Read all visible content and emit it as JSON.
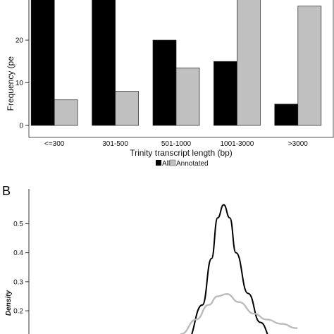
{
  "chart_data": [
    {
      "type": "bar",
      "title": "",
      "xlabel": "Trinity transcript length (bp)",
      "ylabel": "Frequency (pe",
      "categories": [
        "<=300",
        "301-500",
        "501-1000",
        "1001-3000",
        ">3000"
      ],
      "series": [
        {
          "name": "All",
          "values": [
            34,
            33,
            20,
            15,
            5
          ],
          "color": "#000000"
        },
        {
          "name": "Annotated",
          "values": [
            6,
            8,
            13.5,
            30,
            28
          ],
          "color": "#c0c0c0"
        }
      ],
      "ylim": [
        0,
        30
      ],
      "yticks": [
        0,
        10,
        20
      ],
      "legend": "bottom",
      "grid": false
    },
    {
      "type": "line",
      "panel_label": "B",
      "ylabel": "Density",
      "yticks": [
        "0.2",
        "0.3",
        "0.4",
        "0.5"
      ],
      "ylim": [
        0.12,
        0.62
      ],
      "xlim": [
        0,
        10
      ],
      "series": [
        {
          "color": "#000000",
          "x": [
            5.2,
            5.7,
            6.0,
            6.2,
            6.4,
            6.6,
            6.8,
            7.2,
            7.6,
            8.0
          ],
          "y": [
            0.1,
            0.22,
            0.38,
            0.52,
            0.565,
            0.52,
            0.4,
            0.26,
            0.16,
            0.1
          ]
        },
        {
          "color": "#bbbbbb",
          "x": [
            5.0,
            5.5,
            5.9,
            6.2,
            6.5,
            6.9,
            7.4,
            7.8,
            8.3,
            8.8
          ],
          "y": [
            0.12,
            0.17,
            0.22,
            0.25,
            0.258,
            0.23,
            0.19,
            0.17,
            0.155,
            0.14
          ]
        }
      ]
    }
  ]
}
